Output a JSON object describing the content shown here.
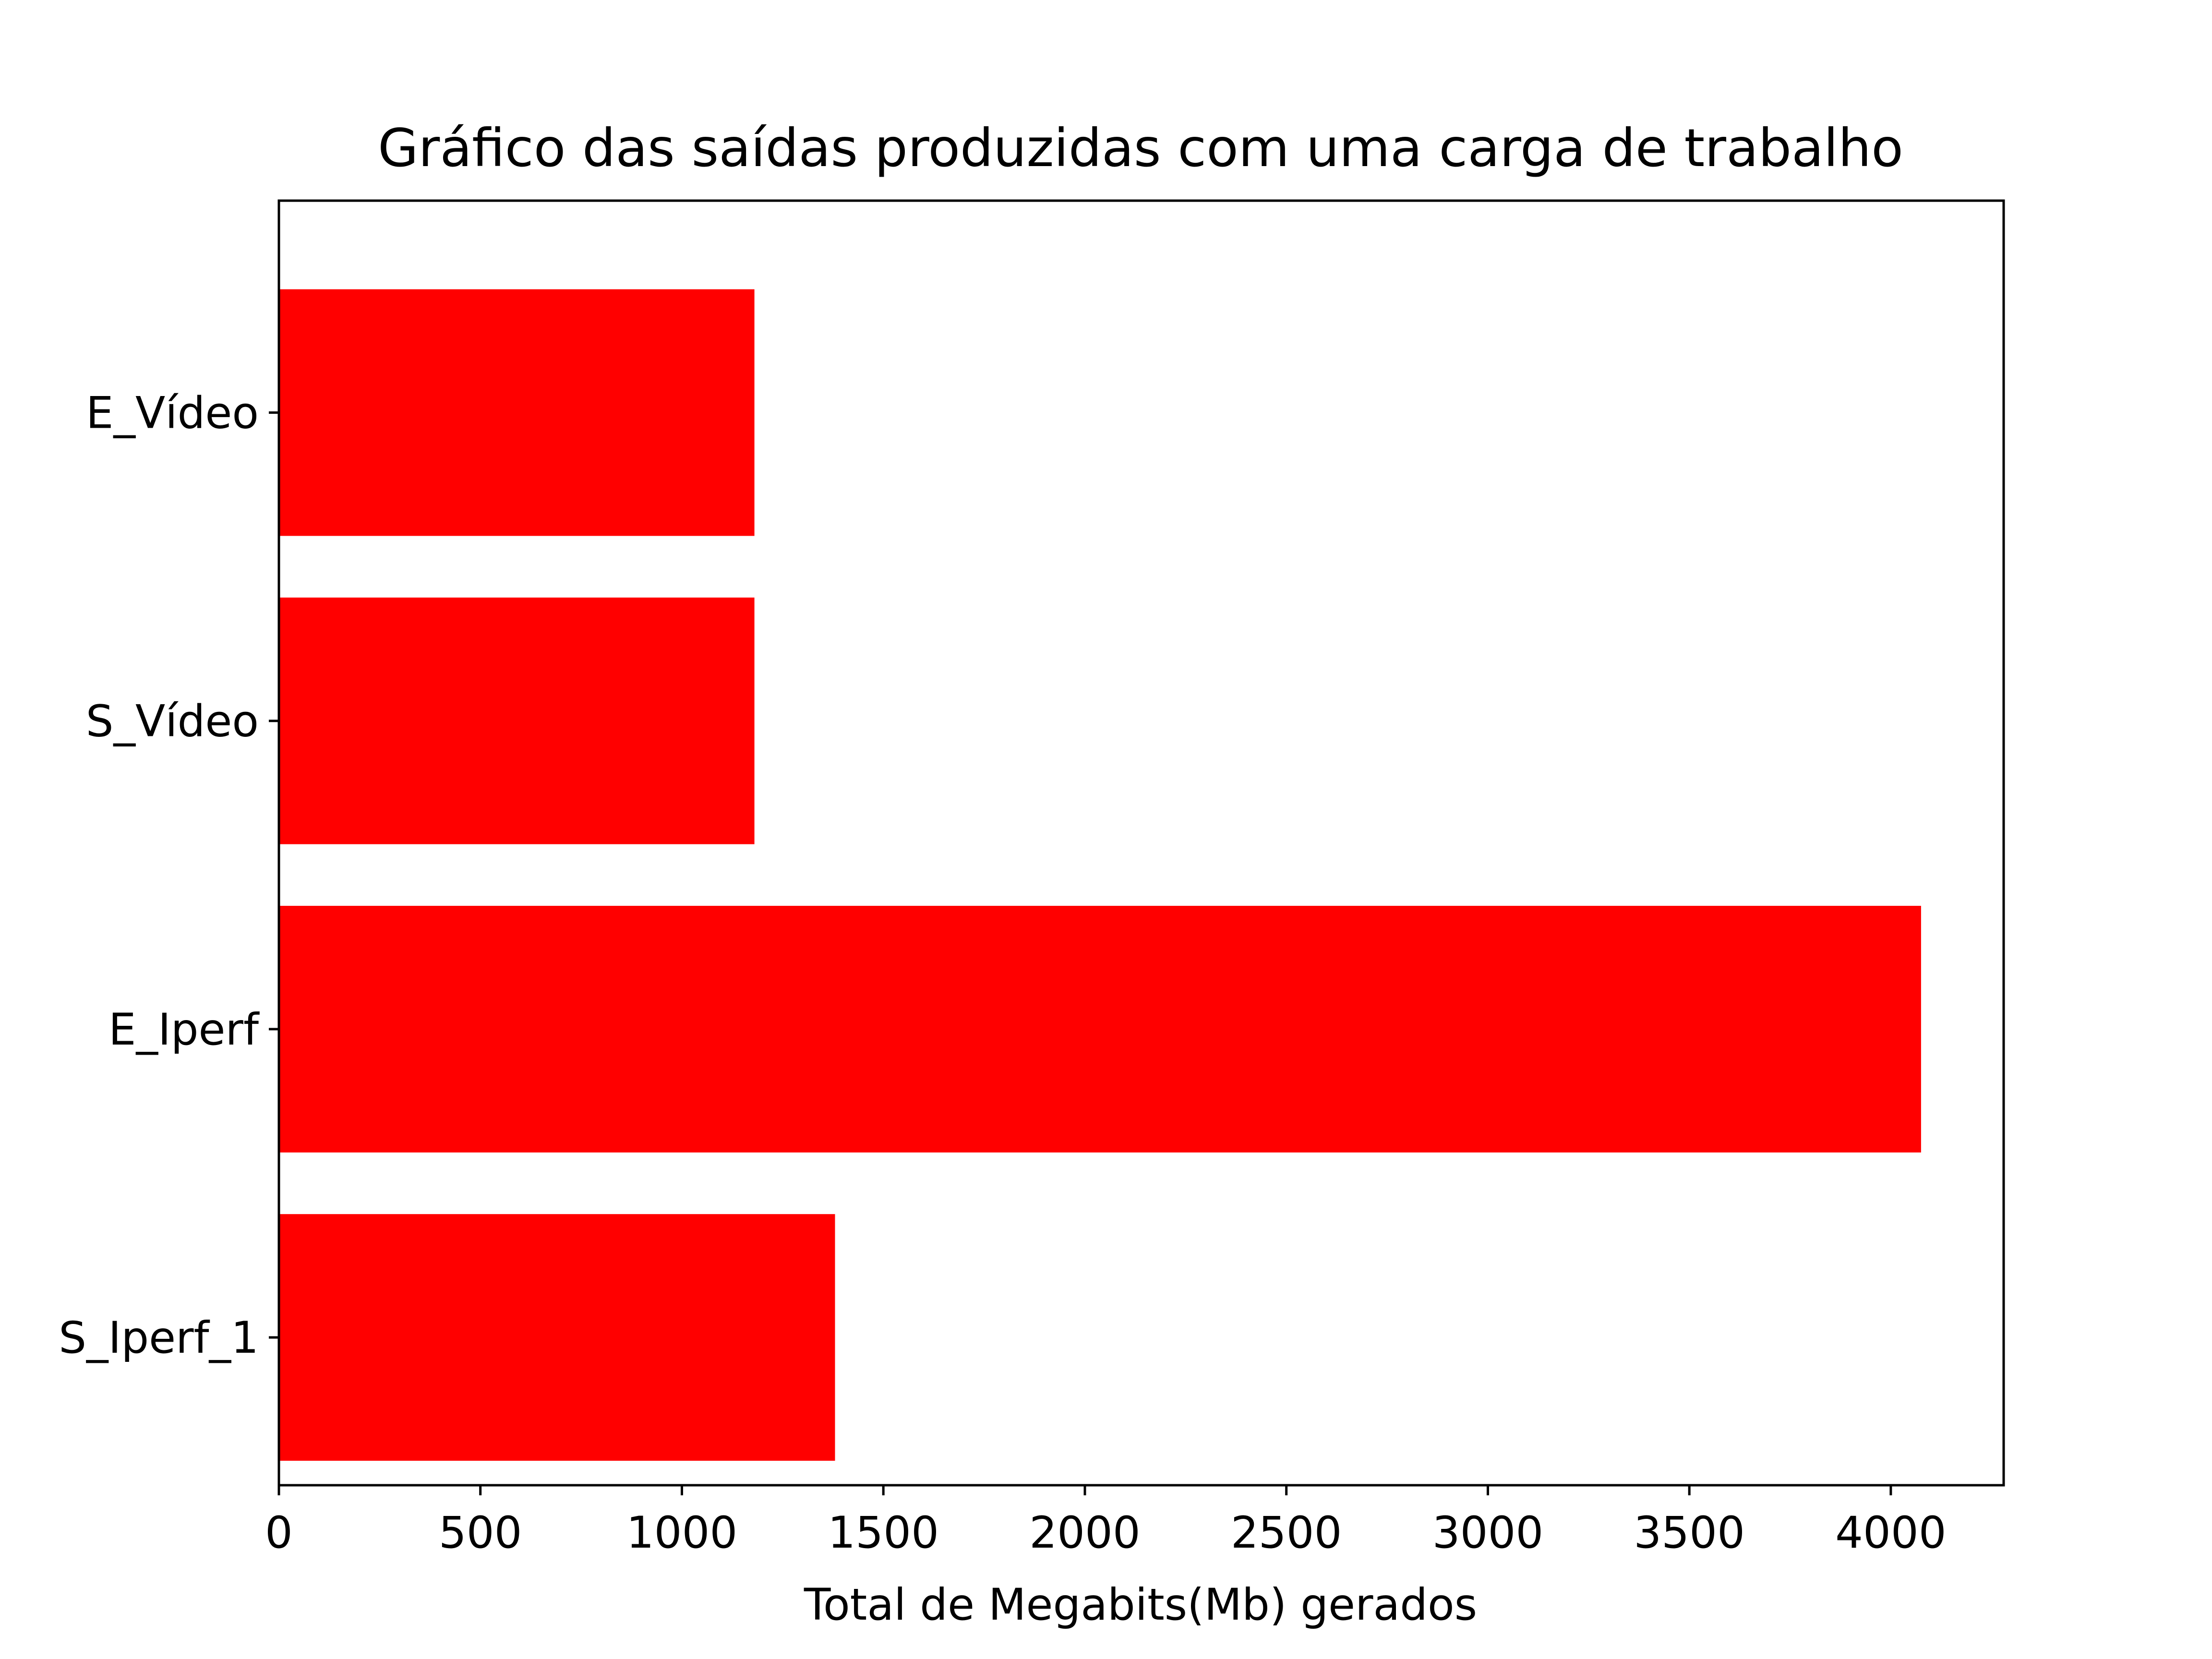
{
  "chart_data": {
    "type": "bar",
    "orientation": "horizontal",
    "title": "Gráfico das saídas produzidas com uma carga de trabalho",
    "xlabel": "Total de Megabits(Mb) gerados",
    "ylabel": "",
    "categories": [
      "E_Vídeo",
      "S_Vídeo",
      "E_Iperf",
      "S_Iperf_1"
    ],
    "values": [
      1180,
      1180,
      4075,
      1380
    ],
    "xlim": [
      0,
      4280
    ],
    "xticks": [
      0,
      500,
      1000,
      1500,
      2000,
      2500,
      3000,
      3500,
      4000
    ],
    "xtick_labels": [
      "0",
      "500",
      "1000",
      "1500",
      "2000",
      "2500",
      "3000",
      "3500",
      "4000"
    ],
    "bar_color": "#ff0000",
    "grid": false,
    "legend": "none"
  }
}
